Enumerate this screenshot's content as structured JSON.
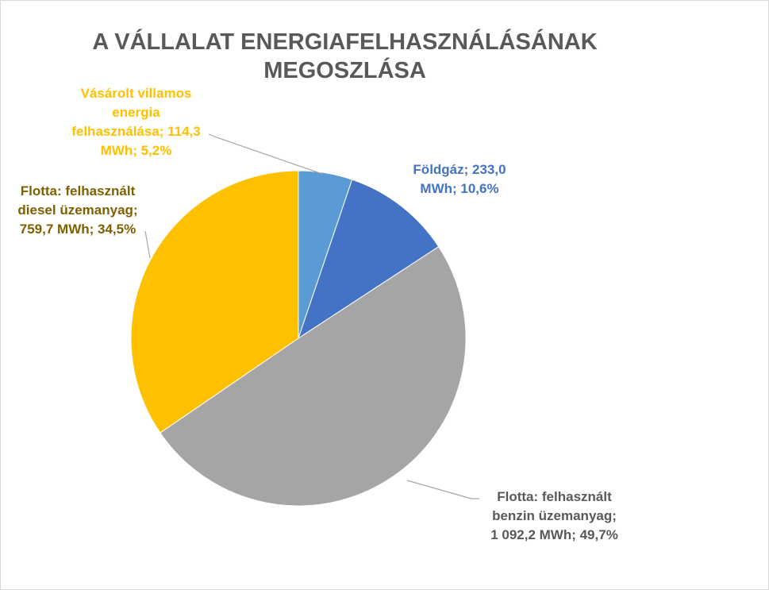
{
  "chart_data": {
    "type": "pie",
    "title_lines": [
      "A VÁLLALAT ENERGIAFELHASZNÁLÁSÁNAK",
      "MEGOSZLÁSA"
    ],
    "unit": "MWh",
    "slices": [
      {
        "name": "Vásárolt villamos energia felhasználása",
        "value": 114.3,
        "percent": 5.2,
        "color": "#5B9BD5",
        "label_color": "#FFC000",
        "label_lines": [
          "Vásárolt  villamos",
          "energia",
          "felhasználása;  114,3",
          "MWh; 5,2%"
        ]
      },
      {
        "name": "Földgáz",
        "value": 233.0,
        "percent": 10.6,
        "color": "#4472C4",
        "label_color": "#4472C4",
        "label_lines": [
          "Földgáz;  233,0",
          "MWh; 10,6%"
        ]
      },
      {
        "name": "Flotta: felhasznált benzin üzemanyag",
        "value": 1092.2,
        "percent": 49.7,
        "color": "#A5A5A5",
        "label_color": "#595959",
        "label_lines": [
          "Flotta: felhasznált",
          "benzin üzemanyag;",
          "1 092,2 MWh; 49,7%"
        ]
      },
      {
        "name": "Flotta: felhasznált diesel üzemanyag",
        "value": 759.7,
        "percent": 34.5,
        "color": "#FFC000",
        "label_color": "#7F6000",
        "label_lines": [
          "Flotta: felhasznált",
          "diesel üzemanyag;",
          "759,7 MWh; 34,5%"
        ]
      }
    ],
    "legend": "none",
    "leader_line_color": "#A6A6A6"
  }
}
